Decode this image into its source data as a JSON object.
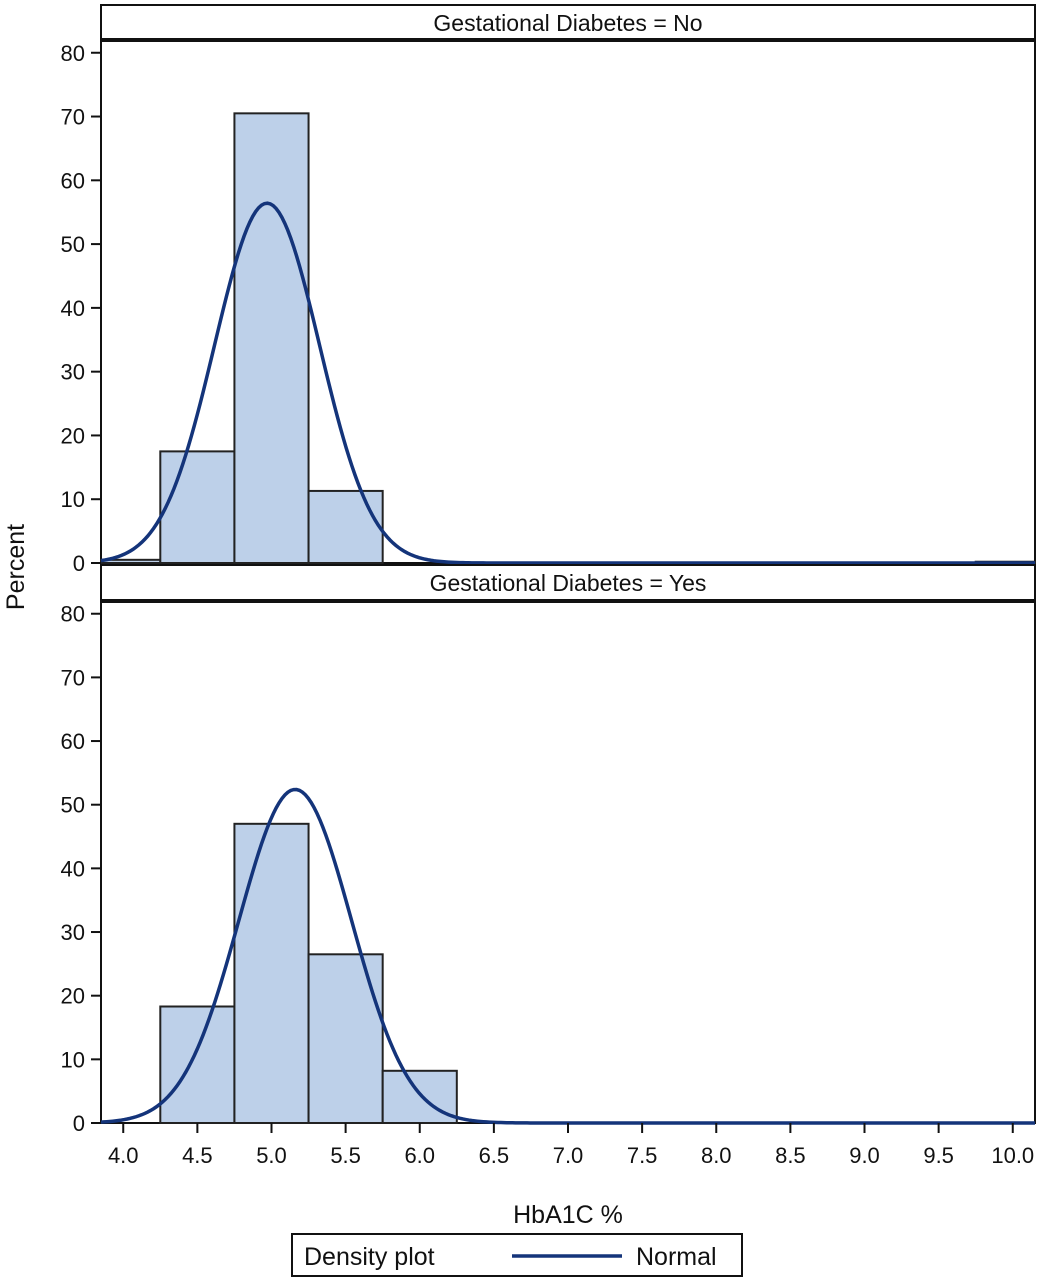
{
  "chart_data": {
    "type": "bar",
    "xlabel": "HbA1C %",
    "ylabel": "Percent",
    "xlim": [
      3.85,
      10.15
    ],
    "ylim": [
      0,
      82
    ],
    "xticks": [
      "4.0",
      "4.5",
      "5.0",
      "5.5",
      "6.0",
      "6.5",
      "7.0",
      "7.5",
      "8.0",
      "8.5",
      "9.0",
      "9.5",
      "10.0"
    ],
    "yticks": [
      "0",
      "10",
      "20",
      "30",
      "40",
      "50",
      "60",
      "70",
      "80"
    ],
    "bin_width": 0.5,
    "colors": {
      "bar_fill": "#bdd0e9",
      "bar_stroke": "#222222",
      "curve": "#14347a"
    },
    "panels": [
      {
        "label": "Gestational Diabetes = No",
        "bins": [
          {
            "center": 4.0,
            "value": 0.5
          },
          {
            "center": 4.5,
            "value": 17.5
          },
          {
            "center": 5.0,
            "value": 70.5
          },
          {
            "center": 5.5,
            "value": 11.3
          },
          {
            "center": 10.0,
            "value": 0.2
          }
        ],
        "normal": {
          "mean": 4.97,
          "sd": 0.3536
        }
      },
      {
        "label": "Gestational Diabetes = Yes",
        "bins": [
          {
            "center": 4.5,
            "value": 18.3
          },
          {
            "center": 5.0,
            "value": 47.0
          },
          {
            "center": 5.5,
            "value": 26.5
          },
          {
            "center": 6.0,
            "value": 8.2
          }
        ],
        "normal": {
          "mean": 5.16,
          "sd": 0.3807
        }
      }
    ],
    "legend": {
      "title": "Density plot",
      "entries": [
        {
          "name": "Normal"
        }
      ]
    }
  }
}
